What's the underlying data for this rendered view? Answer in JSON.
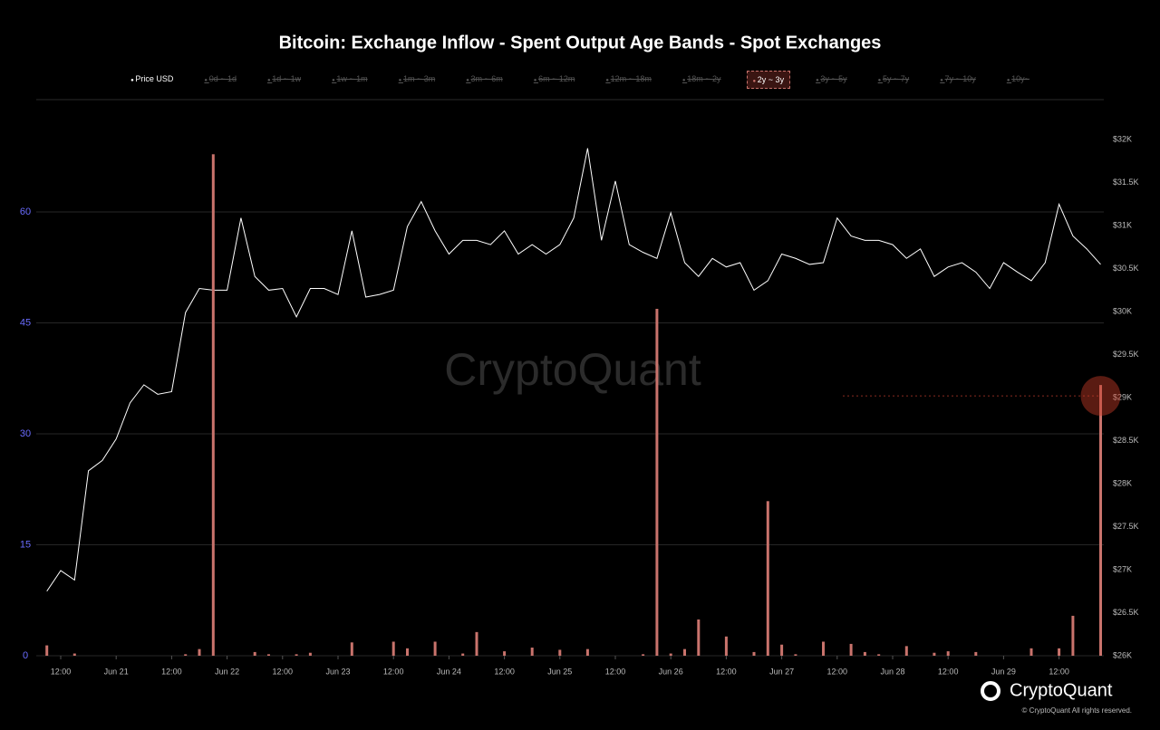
{
  "chart_data": {
    "type": "bar-line",
    "title": "Bitcoin: Exchange Inflow - Spent Output Age Bands - Spot Exchanges",
    "watermark": "CryptoQuant",
    "brand": "CryptoQuant",
    "copyright": "© CryptoQuant All rights reserved.",
    "categories": [
      null,
      "12:00",
      null,
      null,
      null,
      "Jun 21",
      null,
      null,
      null,
      "12:00",
      null,
      null,
      null,
      "Jun 22",
      null,
      null,
      null,
      "12:00",
      null,
      null,
      null,
      "Jun 23",
      null,
      null,
      null,
      "12:00",
      null,
      null,
      null,
      "Jun 24",
      null,
      null,
      null,
      "12:00",
      null,
      null,
      null,
      "Jun 25",
      null,
      null,
      null,
      "12:00",
      null,
      null,
      null,
      "Jun 26",
      null,
      null,
      null,
      "12:00",
      null,
      null,
      null,
      "Jun 27",
      null,
      null,
      null,
      "12:00",
      null,
      null,
      null,
      "Jun 28",
      null,
      null,
      null,
      "12:00",
      null,
      null,
      null,
      "Jun 29",
      null,
      null,
      null,
      "12:00",
      null,
      null,
      null
    ],
    "series": [
      {
        "name": "Price USD",
        "type": "line",
        "axis": "y2",
        "color": "#ffffff",
        "visible": true,
        "values": [
          26750,
          26990,
          26880,
          28150,
          28270,
          28520,
          28940,
          29150,
          29040,
          29070,
          29990,
          30270,
          30250,
          30250,
          31090,
          30410,
          30250,
          30270,
          29940,
          30270,
          30270,
          30200,
          30940,
          30170,
          30200,
          30250,
          30990,
          31280,
          30940,
          30670,
          30830,
          30830,
          30780,
          30940,
          30670,
          30780,
          30670,
          30780,
          31090,
          31900,
          30830,
          31520,
          30780,
          30690,
          30620,
          31150,
          30570,
          30410,
          30620,
          30520,
          30570,
          30250,
          30360,
          30670,
          30620,
          30550,
          30570,
          31090,
          30880,
          30830,
          30830,
          30780,
          30620,
          30730,
          30410,
          30520,
          30570,
          30460,
          30270,
          30570,
          30460,
          30360,
          30570,
          31250,
          30880,
          30730,
          30550
        ]
      },
      {
        "name": "0d ~ 1d",
        "visible": false
      },
      {
        "name": "1d ~ 1w",
        "visible": false
      },
      {
        "name": "1w ~ 1m",
        "visible": false
      },
      {
        "name": "1m ~ 3m",
        "visible": false
      },
      {
        "name": "3m ~ 6m",
        "visible": false
      },
      {
        "name": "6m ~ 12m",
        "visible": false
      },
      {
        "name": "12m ~ 18m",
        "visible": false
      },
      {
        "name": "18m ~ 2y",
        "visible": false
      },
      {
        "name": "2y ~ 3y",
        "type": "bar",
        "axis": "y",
        "color": "#c9736c",
        "visible": true,
        "values": [
          1.4,
          0,
          0.3,
          0,
          0,
          0,
          0,
          0,
          0,
          0,
          0.2,
          0.9,
          67.8,
          0,
          0,
          0.5,
          0.2,
          0,
          0.2,
          0.4,
          0,
          0,
          1.8,
          0,
          0,
          1.9,
          1.0,
          0,
          1.9,
          0,
          0.3,
          3.2,
          0,
          0.6,
          0,
          1.1,
          0,
          0.8,
          0,
          0.9,
          0,
          0,
          0,
          0.2,
          46.9,
          0.3,
          0.9,
          4.9,
          0,
          2.6,
          0,
          0.5,
          20.9,
          1.5,
          0.2,
          0,
          1.9,
          0,
          1.6,
          0.5,
          0.2,
          0,
          1.3,
          0,
          0.4,
          0.6,
          0,
          0.5,
          0,
          0,
          0,
          1.0,
          0,
          1.0,
          5.4,
          0,
          36.6
        ]
      },
      {
        "name": "3y ~ 5y",
        "visible": false
      },
      {
        "name": "5y ~ 7y",
        "visible": false
      },
      {
        "name": "7y ~ 10y",
        "visible": false
      },
      {
        "name": "10y~",
        "visible": false
      }
    ],
    "ylim": [
      0,
      75
    ],
    "yticks": [
      0,
      15,
      30,
      45,
      60
    ],
    "y2lim": [
      26000,
      32450
    ],
    "y2ticks": [
      {
        "value": 26000,
        "label": "$26K"
      },
      {
        "value": 26500,
        "label": "$26.5K"
      },
      {
        "value": 27000,
        "label": "$27K"
      },
      {
        "value": 27500,
        "label": "$27.5K"
      },
      {
        "value": 28000,
        "label": "$28K"
      },
      {
        "value": 28500,
        "label": "$28.5K"
      },
      {
        "value": 29000,
        "label": "$29K"
      },
      {
        "value": 29500,
        "label": "$29.5K"
      },
      {
        "value": 30000,
        "label": "$30K"
      },
      {
        "value": 30500,
        "label": "$30.5K"
      },
      {
        "value": 31000,
        "label": "$31K"
      },
      {
        "value": 31500,
        "label": "$31.5K"
      },
      {
        "value": 32000,
        "label": "$32K"
      }
    ],
    "grid": true
  }
}
